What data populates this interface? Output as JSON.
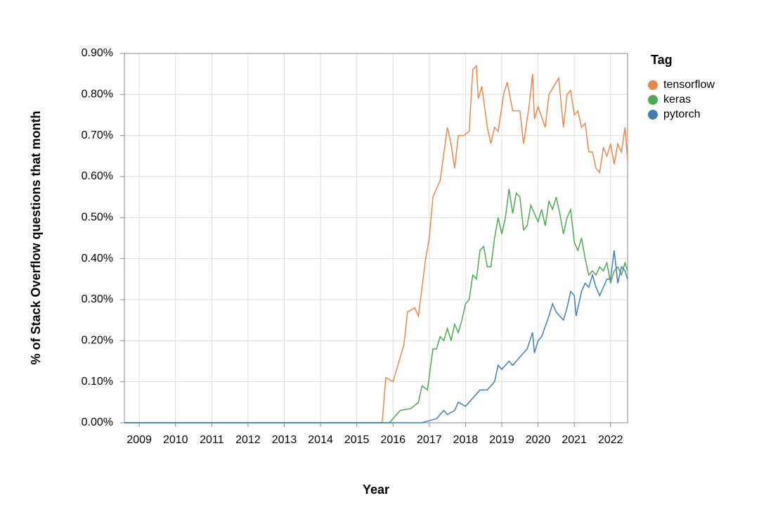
{
  "chart_data": {
    "type": "line",
    "y_label": "% of Stack Overflow questions that month",
    "x_label": "Year",
    "legend_title": "Tag",
    "legend_position": "right",
    "grid": true,
    "xlim": [
      2008.59,
      2022.47
    ],
    "xticks": [
      2009,
      2010,
      2011,
      2012,
      2013,
      2014,
      2015,
      2016,
      2017,
      2018,
      2019,
      2020,
      2021,
      2022
    ],
    "ylim": [
      0,
      0.9
    ],
    "yticks": [
      {
        "value": 0,
        "label": "0.00%"
      },
      {
        "value": 0.1,
        "label": "0.10%"
      },
      {
        "value": 0.2,
        "label": "0.20%"
      },
      {
        "value": 0.3,
        "label": "0.30%"
      },
      {
        "value": 0.4,
        "label": "0.40%"
      },
      {
        "value": 0.5,
        "label": "0.50%"
      },
      {
        "value": 0.6,
        "label": "0.60%"
      },
      {
        "value": 0.7,
        "label": "0.70%"
      },
      {
        "value": 0.8,
        "label": "0.80%"
      },
      {
        "value": 0.9,
        "label": "0.90%"
      }
    ],
    "series": [
      {
        "name": "tensorflow",
        "color": "#e8894a",
        "x": [
          2008.59,
          2015.7,
          2015.8,
          2016.0,
          2016.1,
          2016.3,
          2016.4,
          2016.6,
          2016.7,
          2016.9,
          2017.0,
          2017.1,
          2017.3,
          2017.5,
          2017.6,
          2017.7,
          2017.8,
          2017.95,
          2018.1,
          2018.2,
          2018.3,
          2018.35,
          2018.45,
          2018.6,
          2018.7,
          2018.8,
          2018.9,
          2019.05,
          2019.15,
          2019.3,
          2019.5,
          2019.6,
          2019.75,
          2019.85,
          2019.9,
          2020.0,
          2020.2,
          2020.3,
          2020.57,
          2020.7,
          2020.8,
          2020.9,
          2021.0,
          2021.1,
          2021.2,
          2021.3,
          2021.4,
          2021.5,
          2021.6,
          2021.7,
          2021.8,
          2021.9,
          2022.0,
          2022.1,
          2022.2,
          2022.3,
          2022.4,
          2022.47
        ],
        "values": [
          0,
          0,
          0.11,
          0.1,
          0.13,
          0.19,
          0.27,
          0.28,
          0.26,
          0.4,
          0.45,
          0.55,
          0.59,
          0.72,
          0.68,
          0.62,
          0.7,
          0.7,
          0.71,
          0.86,
          0.87,
          0.79,
          0.82,
          0.72,
          0.68,
          0.72,
          0.71,
          0.8,
          0.83,
          0.76,
          0.76,
          0.68,
          0.77,
          0.85,
          0.74,
          0.77,
          0.72,
          0.8,
          0.84,
          0.72,
          0.8,
          0.81,
          0.75,
          0.76,
          0.72,
          0.73,
          0.66,
          0.66,
          0.62,
          0.61,
          0.67,
          0.65,
          0.68,
          0.63,
          0.68,
          0.66,
          0.72,
          0.64
        ]
      },
      {
        "name": "keras",
        "color": "#4fa852",
        "x": [
          2008.59,
          2015.9,
          2016.0,
          2016.2,
          2016.5,
          2016.7,
          2016.8,
          2016.95,
          2017.1,
          2017.2,
          2017.3,
          2017.4,
          2017.5,
          2017.6,
          2017.7,
          2017.8,
          2017.9,
          2018.0,
          2018.1,
          2018.2,
          2018.3,
          2018.4,
          2018.5,
          2018.6,
          2018.7,
          2018.8,
          2018.9,
          2019.0,
          2019.1,
          2019.2,
          2019.3,
          2019.4,
          2019.5,
          2019.6,
          2019.7,
          2019.8,
          2019.9,
          2020.0,
          2020.1,
          2020.2,
          2020.3,
          2020.4,
          2020.5,
          2020.6,
          2020.7,
          2020.8,
          2020.9,
          2021.0,
          2021.1,
          2021.2,
          2021.3,
          2021.4,
          2021.5,
          2021.6,
          2021.7,
          2021.8,
          2021.9,
          2022.0,
          2022.1,
          2022.2,
          2022.3,
          2022.4,
          2022.47
        ],
        "values": [
          0,
          0,
          0.01,
          0.03,
          0.035,
          0.05,
          0.09,
          0.08,
          0.18,
          0.18,
          0.21,
          0.2,
          0.23,
          0.2,
          0.24,
          0.22,
          0.25,
          0.29,
          0.3,
          0.36,
          0.35,
          0.42,
          0.43,
          0.38,
          0.38,
          0.45,
          0.5,
          0.46,
          0.5,
          0.57,
          0.51,
          0.56,
          0.55,
          0.47,
          0.48,
          0.53,
          0.51,
          0.49,
          0.52,
          0.48,
          0.54,
          0.52,
          0.55,
          0.51,
          0.46,
          0.5,
          0.52,
          0.44,
          0.42,
          0.45,
          0.4,
          0.36,
          0.37,
          0.36,
          0.38,
          0.37,
          0.39,
          0.34,
          0.37,
          0.38,
          0.36,
          0.39,
          0.37
        ]
      },
      {
        "name": "pytorch",
        "color": "#3f7fb5",
        "x": [
          2008.59,
          2016.8,
          2017.0,
          2017.2,
          2017.4,
          2017.5,
          2017.7,
          2017.8,
          2018.0,
          2018.2,
          2018.4,
          2018.6,
          2018.8,
          2018.9,
          2019.0,
          2019.2,
          2019.3,
          2019.5,
          2019.7,
          2019.85,
          2019.9,
          2020.0,
          2020.1,
          2020.3,
          2020.4,
          2020.5,
          2020.7,
          2020.8,
          2020.9,
          2021.0,
          2021.05,
          2021.2,
          2021.3,
          2021.4,
          2021.5,
          2021.6,
          2021.7,
          2021.8,
          2021.9,
          2022.0,
          2022.1,
          2022.2,
          2022.3,
          2022.4,
          2022.47
        ],
        "values": [
          0,
          0,
          0.005,
          0.01,
          0.03,
          0.02,
          0.03,
          0.05,
          0.04,
          0.06,
          0.08,
          0.08,
          0.1,
          0.14,
          0.13,
          0.15,
          0.14,
          0.16,
          0.18,
          0.22,
          0.17,
          0.2,
          0.21,
          0.26,
          0.29,
          0.27,
          0.25,
          0.28,
          0.32,
          0.31,
          0.26,
          0.32,
          0.34,
          0.33,
          0.36,
          0.33,
          0.31,
          0.33,
          0.35,
          0.35,
          0.42,
          0.34,
          0.38,
          0.37,
          0.35
        ]
      }
    ]
  }
}
